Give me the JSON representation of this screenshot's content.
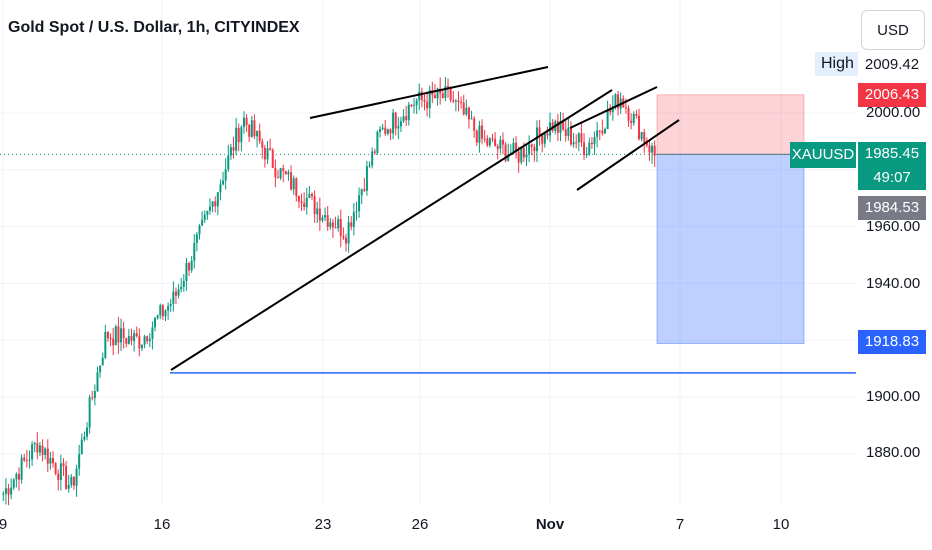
{
  "header": {
    "title": "Gold Spot / U.S. Dollar, 1h, CITYINDEX",
    "currency": "USD"
  },
  "price_scale": {
    "high_label": "High",
    "high_value": "2009.42",
    "take_profit": "2006.43",
    "symbol": "XAUUSD",
    "current": "1985.45",
    "countdown": "49:07",
    "ask": "1984.53",
    "stop_target": "1918.83",
    "ticks": [
      "2000.00",
      "1960.00",
      "1940.00",
      "1900.00",
      "1880.00"
    ]
  },
  "time_scale": {
    "ticks": [
      "9",
      "16",
      "23",
      "26",
      "Nov",
      "7",
      "10"
    ]
  },
  "colors": {
    "up": "#089981",
    "down": "#f23645",
    "profit_zone": "#f23645",
    "loss_zone": "#2962ff",
    "support": "#2962ff",
    "trendline": "#000000"
  },
  "chart_data": {
    "type": "candlestick",
    "title": "Gold Spot / U.S. Dollar, 1h, CITYINDEX",
    "x_ticks": [
      "9",
      "16",
      "23",
      "26",
      "Nov",
      "7",
      "10"
    ],
    "ylim": [
      1862,
      2022
    ],
    "path": [
      [
        1866,
        1863
      ],
      [
        1884,
        1878
      ],
      [
        1868,
        1882
      ],
      [
        1922,
        1930
      ],
      [
        1920,
        1910
      ],
      [
        1935,
        1945
      ],
      [
        1965,
        1955
      ],
      [
        1998,
        1993
      ],
      [
        1980,
        1985
      ],
      [
        1968,
        1990
      ],
      [
        1958,
        1975
      ],
      [
        1993,
        1983
      ],
      [
        2004,
        2000
      ],
      [
        2006,
        2003
      ],
      [
        1990,
        1998
      ],
      [
        1985,
        1988
      ],
      [
        1996,
        1990
      ],
      [
        1988,
        1995
      ],
      [
        2006,
        1992
      ],
      [
        1985,
        1987
      ]
    ],
    "current_price": 1985.45,
    "long_short_position": {
      "entry": 1985.45,
      "take_profit": 2006.43,
      "stop": 1918.83
    },
    "support_level": 1908.5
  }
}
